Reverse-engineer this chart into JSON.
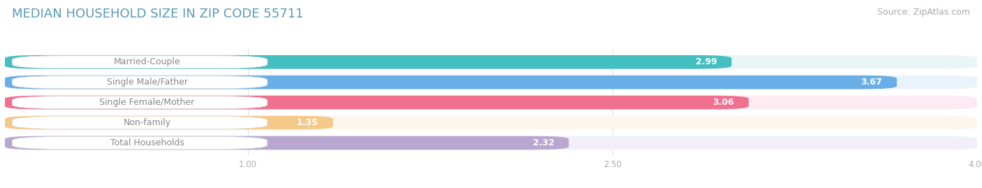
{
  "title": "MEDIAN HOUSEHOLD SIZE IN ZIP CODE 55711",
  "source": "Source: ZipAtlas.com",
  "categories": [
    "Married-Couple",
    "Single Male/Father",
    "Single Female/Mother",
    "Non-family",
    "Total Households"
  ],
  "values": [
    2.99,
    3.67,
    3.06,
    1.35,
    2.32
  ],
  "bar_colors": [
    "#45bfbf",
    "#6aaee8",
    "#f07090",
    "#f5c98a",
    "#b8a8d0"
  ],
  "bar_bg_colors": [
    "#eaf6f6",
    "#eaf3fc",
    "#fdeaf2",
    "#fdf6ec",
    "#f3eff8"
  ],
  "label_bg_color": "#ffffff",
  "label_text_color": "#888888",
  "value_text_color": "#ffffff",
  "title_color": "#5a9ab5",
  "source_color": "#aaaaaa",
  "bg_color": "#ffffff",
  "grid_color": "#e0e0e0",
  "xlim": [
    0,
    4.0
  ],
  "xticks": [
    1.0,
    2.5,
    4.0
  ],
  "xtick_color": "#aaaaaa",
  "title_fontsize": 13,
  "source_fontsize": 9,
  "bar_label_fontsize": 9,
  "value_fontsize": 9
}
